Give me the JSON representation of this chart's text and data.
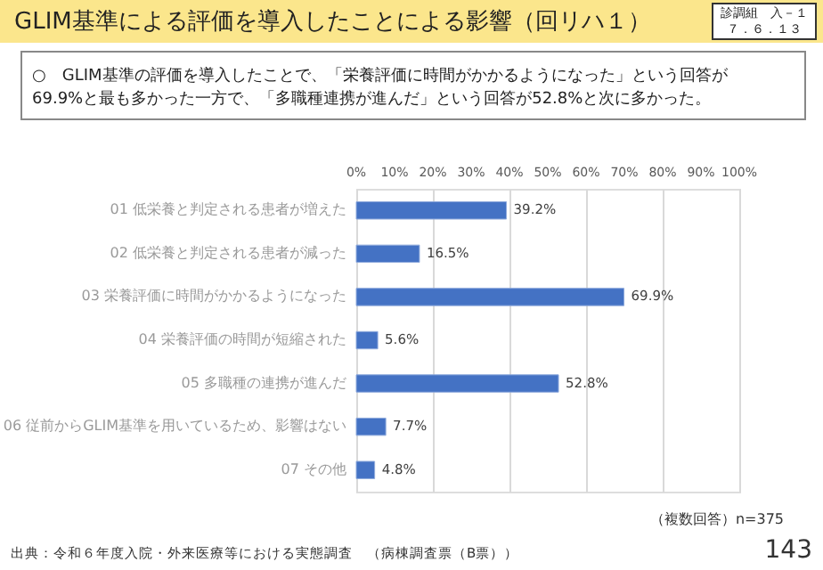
{
  "chart_data": {
    "type": "bar",
    "orientation": "horizontal",
    "title": "GLIM基準による評価を導入したことによる影響（回リハ１）",
    "subtitle": "○　GLIM基準の評価を導入したことで、「栄養評価に時間がかかるようになった」という回答が69.9%と最も多かった一方で、「多職種連携が進んだ」という回答が52.8%と次に多かった。",
    "categories": [
      "01 低栄養と判定される患者が増えた",
      "02 低栄養と判定される患者が減った",
      "03 栄養評価に時間がかかるようになった",
      "04 栄養評価の時間が短縮された",
      "05 多職種の連携が進んだ",
      "06 従前からGLIM基準を用いているため、影響はない",
      "07 その他"
    ],
    "values": [
      39.2,
      16.5,
      69.9,
      5.6,
      52.8,
      7.7,
      4.8
    ],
    "value_labels": [
      "39.2%",
      "16.5%",
      "69.9%",
      "5.6%",
      "52.8%",
      "7.7%",
      "4.8%"
    ],
    "color": "#4472c4",
    "xlim": [
      0,
      100
    ],
    "xticks": [
      {
        "value": 0,
        "label": "0%"
      },
      {
        "value": 10,
        "label": "10%"
      },
      {
        "value": 20,
        "label": "20%"
      },
      {
        "value": 30,
        "label": "30%"
      },
      {
        "value": 40,
        "label": "40%"
      },
      {
        "value": 50,
        "label": "50%"
      },
      {
        "value": 60,
        "label": "60%"
      },
      {
        "value": 70,
        "label": "70%"
      },
      {
        "value": 80,
        "label": "80%"
      },
      {
        "value": 90,
        "label": "90%"
      },
      {
        "value": 100,
        "label": "100%"
      }
    ],
    "grid": "x",
    "annotations": [
      "診調組　入－１",
      "７．６．１３",
      "（複数回答）n=375",
      "出典：令和６年度入院・外来医療等における実態調査　（病棟調査票（B票））",
      "143"
    ]
  }
}
